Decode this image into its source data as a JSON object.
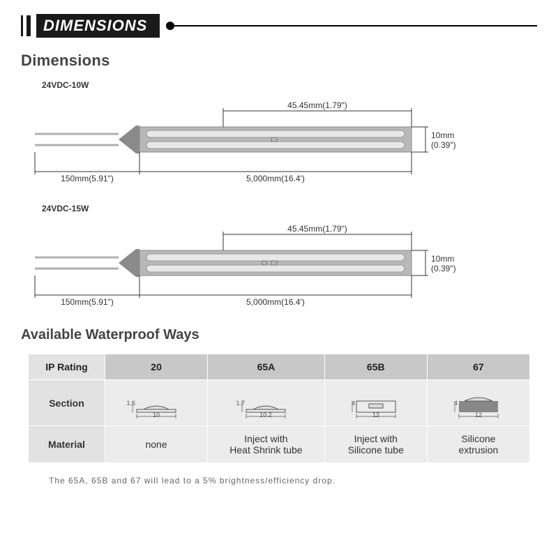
{
  "header": {
    "title": "DIMENSIONS"
  },
  "dimensions": {
    "title": "Dimensions",
    "models": [
      {
        "label": "24VDC-10W",
        "top_dim": "45.45mm(1.79\")",
        "height_a": "10mm",
        "height_b": "(0.39\")",
        "cable_dim": "150mm(5.91\")",
        "length_dim": "5,000mm(16.4')"
      },
      {
        "label": "24VDC-15W",
        "top_dim": "45.45mm(1.79\")",
        "height_a": "10mm",
        "height_b": "(0.39\")",
        "cable_dim": "150mm(5.91\")",
        "length_dim": "5,000mm(16.4')"
      }
    ]
  },
  "waterproof": {
    "title": "Available Waterproof Ways",
    "col_header": "IP Rating",
    "row1": "Section",
    "row2": "Material",
    "columns": [
      {
        "rating": "20",
        "material": "none",
        "section": {
          "h": "1.6",
          "w": "10",
          "filled": false,
          "dome": true
        }
      },
      {
        "rating": "65A",
        "material": "Inject with\nHeat Shrink tube",
        "section": {
          "h": "1.7",
          "w": "10.2",
          "filled": false,
          "dome": true
        }
      },
      {
        "rating": "65B",
        "material": "Inject with\nSilicone tube",
        "section": {
          "h": "4",
          "w": "12",
          "filled": false,
          "dome": false
        }
      },
      {
        "rating": "67",
        "material": "Silicone\nextrusion",
        "section": {
          "h": "4",
          "w": "12",
          "filled": true,
          "dome": true
        }
      }
    ],
    "footnote": "The 65A, 65B and 67 will lead to a 5% brightness/efficiency drop."
  },
  "colors": {
    "strip_body": "#b8b8b8",
    "strip_slot": "#e8e8e8",
    "endcap": "#8a8a8a",
    "cable": "#b0b0b0",
    "dim_line": "#333333"
  }
}
